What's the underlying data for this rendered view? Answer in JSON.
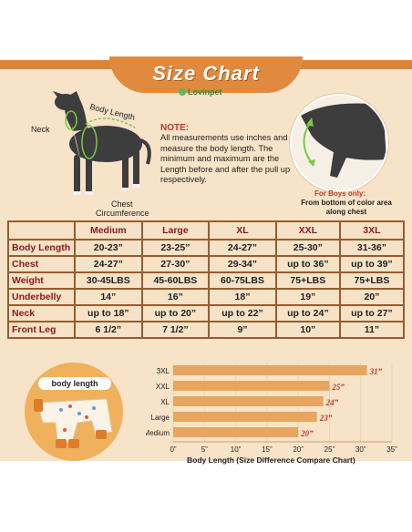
{
  "title": "Size Chart",
  "brand": "Lovinpet",
  "dog_labels": {
    "neck": "Neck",
    "body_length": "Body Length",
    "chest_line1": "Chest",
    "chest_line2": "Circumference"
  },
  "note": {
    "title": "NOTE:",
    "body": "All measurements use inches and measure the body length. The minimum and maximum are the Length before and after the pull up respectively."
  },
  "boys": {
    "title": "For Boys only:",
    "body": "From bottom of color area along chest"
  },
  "table": {
    "sizes": [
      "Medium",
      "Large",
      "XL",
      "XXL",
      "3XL"
    ],
    "rows": [
      {
        "label": "Body Length",
        "values": [
          "20-23”",
          "23-25”",
          "24-27”",
          "25-30”",
          "31-36”"
        ]
      },
      {
        "label": "Chest",
        "values": [
          "24-27”",
          "27-30”",
          "29-34”",
          "up to 36”",
          "up to 39”"
        ]
      },
      {
        "label": "Weight",
        "values": [
          "30-45LBS",
          "45-60LBS",
          "60-75LBS",
          "75+LBS",
          "75+LBS"
        ]
      },
      {
        "label": "Underbelly",
        "values": [
          "14”",
          "16”",
          "18”",
          "19”",
          "20”"
        ]
      },
      {
        "label": "Neck",
        "values": [
          "up to 18”",
          "up to 20”",
          "up to 22”",
          "up to 24”",
          "up to 27”"
        ]
      },
      {
        "label": "Front Leg",
        "values": [
          "6 1/2”",
          "7 1/2”",
          "9”",
          "10”",
          "11”"
        ]
      }
    ]
  },
  "body_length_badge": "body length",
  "colors": {
    "accent": "#e08a3f",
    "bar": "#e8a55f",
    "value_label": "#c0392b",
    "background": "#f7e3c8"
  },
  "chart_data": {
    "type": "bar",
    "orientation": "horizontal",
    "categories": [
      "3XL",
      "XXL",
      "XL",
      "Large",
      "Medium"
    ],
    "values": [
      31,
      25,
      24,
      23,
      20
    ],
    "value_labels": [
      "31”",
      "25”",
      "24”",
      "23”",
      "20”"
    ],
    "x_ticks": [
      "0”",
      "5”",
      "10”",
      "15”",
      "20”",
      "25”",
      "30”",
      "35”"
    ],
    "xlim": [
      0,
      35
    ],
    "xlabel": "Body Length  (Size Difference Compare Chart)",
    "grid": true
  }
}
